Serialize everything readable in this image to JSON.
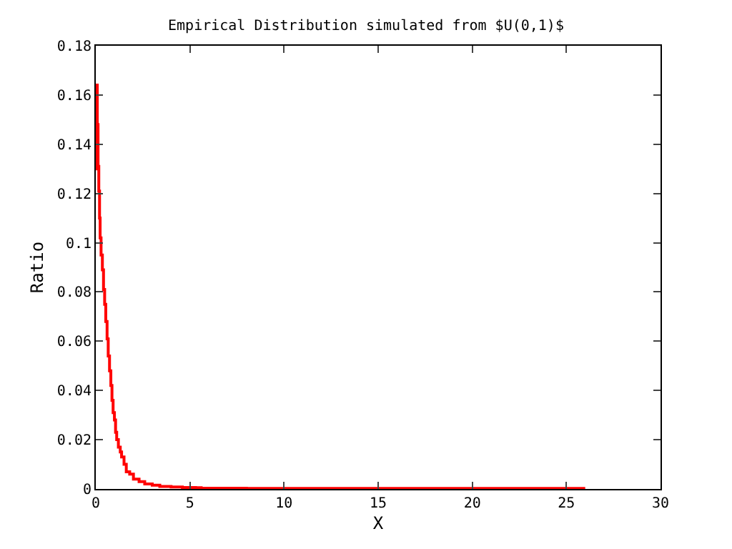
{
  "chart_data": {
    "type": "step",
    "title": "Empirical Distribution simulated from $U(0,1)$",
    "xlabel": "X",
    "ylabel": "Ratio",
    "x": [
      0.0,
      0.05,
      0.08,
      0.12,
      0.16,
      0.2,
      0.23,
      0.28,
      0.35,
      0.41,
      0.47,
      0.53,
      0.6,
      0.66,
      0.73,
      0.8,
      0.86,
      0.92,
      0.99,
      1.05,
      1.11,
      1.2,
      1.3,
      1.37,
      1.5,
      1.62,
      1.8,
      2.0,
      2.3,
      2.6,
      3.0,
      3.4,
      4.0,
      4.6,
      5.3,
      5.6,
      8,
      12,
      16,
      20,
      24,
      26
    ],
    "series": [
      {
        "color": "#ff0000",
        "values": [
          0.13,
          0.164,
          0.148,
          0.131,
          0.121,
          0.11,
          0.102,
          0.095,
          0.089,
          0.081,
          0.075,
          0.068,
          0.061,
          0.054,
          0.048,
          0.042,
          0.036,
          0.031,
          0.028,
          0.023,
          0.02,
          0.017,
          0.015,
          0.013,
          0.01,
          0.007,
          0.006,
          0.004,
          0.003,
          0.002,
          0.0015,
          0.001,
          0.0008,
          0.0006,
          0.0005,
          0.0003,
          0.0002,
          0.0002,
          0.0002,
          0.0002,
          0.0002,
          0.0002
        ]
      }
    ],
    "xlim": [
      0,
      30
    ],
    "xticks": [
      0,
      5,
      10,
      15,
      20,
      25,
      30
    ],
    "ylim": [
      0,
      0.18
    ],
    "yticks": [
      0,
      0.02,
      0.04,
      0.06,
      0.08,
      0.1,
      0.12,
      0.14,
      0.16,
      0.18
    ],
    "grid": false,
    "marker": "none",
    "line_style": "solid"
  }
}
